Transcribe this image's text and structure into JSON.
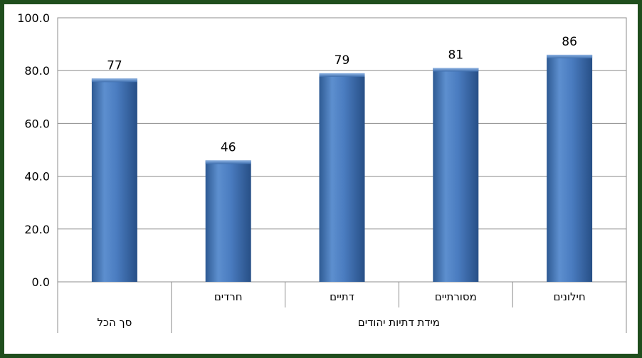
{
  "chart_data": {
    "type": "bar",
    "title": "",
    "xlabel": "",
    "ylabel": "",
    "ylim": [
      0,
      100
    ],
    "yticks": [
      "0.0",
      "20.0",
      "40.0",
      "60.0",
      "80.0",
      "100.0"
    ],
    "grid": true,
    "legend": "none",
    "bar_color": "#4f81bd",
    "categories": [
      "סך הכל",
      "חרדים",
      "דתיים",
      "מסורתיים",
      "חילונים"
    ],
    "values": [
      77,
      46,
      79,
      81,
      86
    ],
    "category_labels": [
      "",
      "חרדים",
      "דתיים",
      "מסורתיים",
      "חילונים"
    ],
    "group_labels": [
      {
        "label": "סך הכל",
        "categories": [
          "סך הכל"
        ]
      },
      {
        "label": "מידת דתיות יהודים",
        "categories": [
          "חרדים",
          "דתיים",
          "מסורתיים",
          "חילונים"
        ]
      }
    ]
  }
}
